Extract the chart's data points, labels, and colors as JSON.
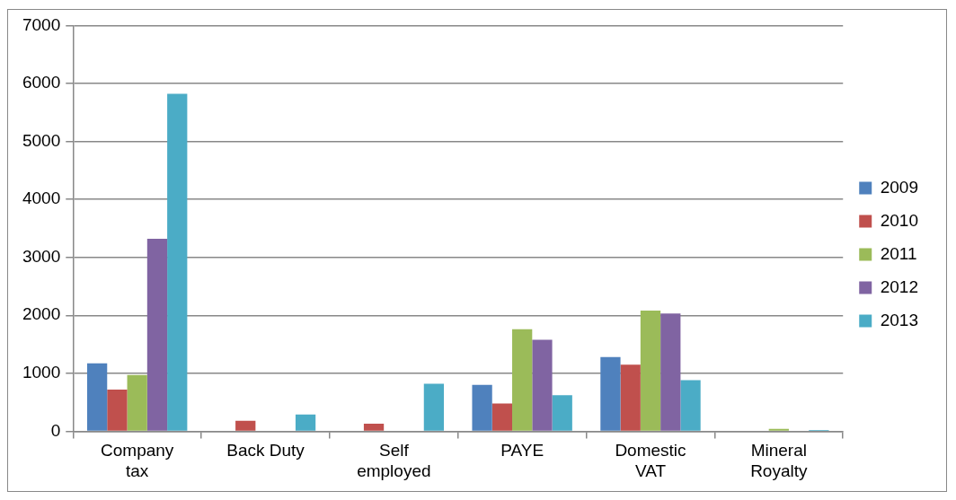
{
  "chart_data": {
    "type": "bar",
    "categories": [
      "Company tax",
      "Back Duty",
      "Self employed",
      "PAYE",
      "Domestic VAT",
      "Mineral Royalty"
    ],
    "series": [
      {
        "name": "2009",
        "color": "#4f81bd",
        "values": [
          1170,
          0,
          10,
          800,
          1280,
          0
        ]
      },
      {
        "name": "2010",
        "color": "#c0504d",
        "values": [
          720,
          180,
          130,
          480,
          1150,
          0
        ]
      },
      {
        "name": "2011",
        "color": "#9bbb59",
        "values": [
          970,
          0,
          0,
          1760,
          2080,
          40
        ]
      },
      {
        "name": "2012",
        "color": "#8064a2",
        "values": [
          3320,
          0,
          0,
          1580,
          2030,
          0
        ]
      },
      {
        "name": "2013",
        "color": "#4bacc6",
        "values": [
          5820,
          290,
          820,
          620,
          880,
          20
        ]
      }
    ],
    "ylim": [
      0,
      7000
    ],
    "yticks": [
      0,
      1000,
      2000,
      3000,
      4000,
      5000,
      6000,
      7000
    ],
    "grid": "y",
    "legend": "right"
  }
}
